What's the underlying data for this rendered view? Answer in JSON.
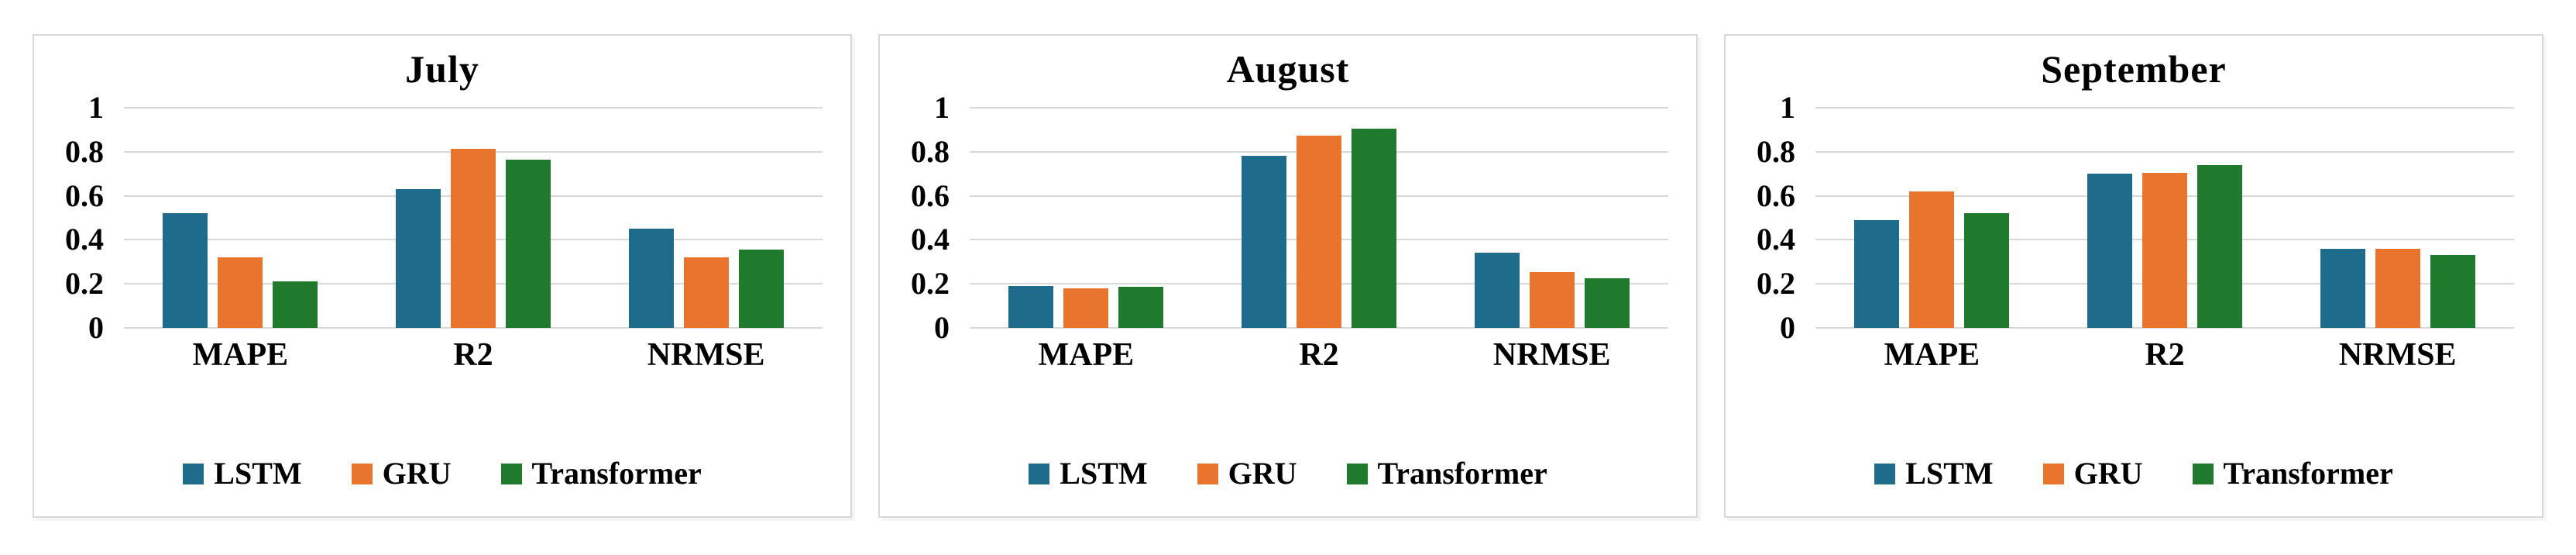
{
  "page": {
    "background": "#ffffff"
  },
  "colors": {
    "lstm": "#1f6b8c",
    "gru": "#e8742e",
    "transformer": "#1f7a2e",
    "grid": "#d9d9d9",
    "panel_border": "#d8d8d8",
    "text": "#000000"
  },
  "chart_data": [
    {
      "type": "bar",
      "title": "July",
      "categories": [
        "MAPE",
        "R2",
        "NRMSE"
      ],
      "series": [
        {
          "name": "LSTM",
          "color": "#1f6b8c",
          "values": [
            0.52,
            0.63,
            0.45
          ]
        },
        {
          "name": "GRU",
          "color": "#e8742e",
          "values": [
            0.32,
            0.815,
            0.32
          ]
        },
        {
          "name": "Transformer",
          "color": "#1f7a2e",
          "values": [
            0.21,
            0.765,
            0.355
          ]
        }
      ],
      "xlabel": "",
      "ylabel": "",
      "ylim": [
        0,
        1
      ],
      "yticks": [
        "1",
        "0.8",
        "0.6",
        "0.4",
        "0.2",
        "0"
      ],
      "grid": true,
      "legend_position": "bottom"
    },
    {
      "type": "bar",
      "title": "August",
      "categories": [
        "MAPE",
        "R2",
        "NRMSE"
      ],
      "series": [
        {
          "name": "LSTM",
          "color": "#1f6b8c",
          "values": [
            0.19,
            0.78,
            0.34
          ]
        },
        {
          "name": "GRU",
          "color": "#e8742e",
          "values": [
            0.18,
            0.875,
            0.255
          ]
        },
        {
          "name": "Transformer",
          "color": "#1f7a2e",
          "values": [
            0.185,
            0.905,
            0.225
          ]
        }
      ],
      "xlabel": "",
      "ylabel": "",
      "ylim": [
        0,
        1
      ],
      "yticks": [
        "1",
        "0.8",
        "0.6",
        "0.4",
        "0.2",
        "0"
      ],
      "grid": true,
      "legend_position": "bottom"
    },
    {
      "type": "bar",
      "title": "September",
      "categories": [
        "MAPE",
        "R2",
        "NRMSE"
      ],
      "series": [
        {
          "name": "LSTM",
          "color": "#1f6b8c",
          "values": [
            0.49,
            0.7,
            0.36
          ]
        },
        {
          "name": "GRU",
          "color": "#e8742e",
          "values": [
            0.62,
            0.705,
            0.36
          ]
        },
        {
          "name": "Transformer",
          "color": "#1f7a2e",
          "values": [
            0.52,
            0.74,
            0.33
          ]
        }
      ],
      "xlabel": "",
      "ylabel": "",
      "ylim": [
        0,
        1
      ],
      "yticks": [
        "1",
        "0.8",
        "0.6",
        "0.4",
        "0.2",
        "0"
      ],
      "grid": true,
      "legend_position": "bottom"
    }
  ]
}
